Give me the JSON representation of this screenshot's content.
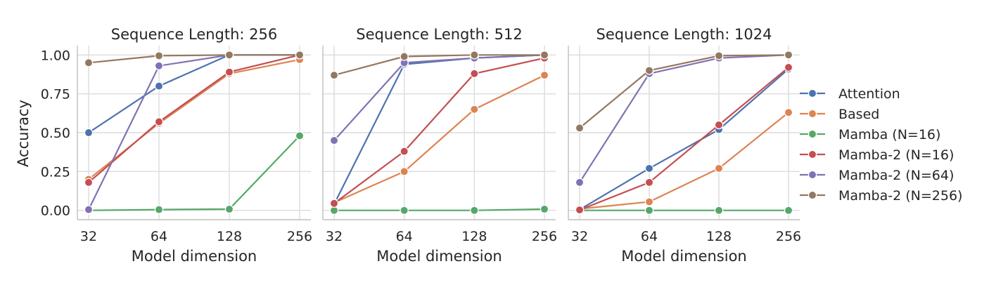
{
  "figure": {
    "ylabel": "Accuracy"
  },
  "chart_data": [
    {
      "type": "line",
      "title": "Sequence Length: 256",
      "xlabel": "Model dimension",
      "ylabel": "Accuracy",
      "x": [
        32,
        64,
        128,
        256
      ],
      "x_scale": "log2",
      "xticks": [
        "32",
        "64",
        "128",
        "256"
      ],
      "ylim": [
        -0.06,
        1.06
      ],
      "yticks": [
        "0.00",
        "0.25",
        "0.50",
        "0.75",
        "1.00"
      ],
      "grid": true,
      "series": [
        {
          "name": "Attention",
          "values": [
            0.5,
            0.8,
            1.0,
            1.0
          ]
        },
        {
          "name": "Based",
          "values": [
            0.2,
            0.56,
            0.88,
            0.97
          ]
        },
        {
          "name": "Mamba (N=16)",
          "values": [
            0.0,
            0.005,
            0.008,
            0.48
          ]
        },
        {
          "name": "Mamba-2 (N=16)",
          "values": [
            0.18,
            0.57,
            0.89,
            1.0
          ]
        },
        {
          "name": "Mamba-2 (N=64)",
          "values": [
            0.005,
            0.93,
            1.0,
            1.0
          ]
        },
        {
          "name": "Mamba-2 (N=256)",
          "values": [
            0.95,
            0.995,
            1.0,
            1.0
          ]
        }
      ]
    },
    {
      "type": "line",
      "title": "Sequence Length: 512",
      "xlabel": "Model dimension",
      "x": [
        32,
        64,
        128,
        256
      ],
      "x_scale": "log2",
      "xticks": [
        "32",
        "64",
        "128",
        "256"
      ],
      "ylim": [
        -0.06,
        1.06
      ],
      "grid": true,
      "series": [
        {
          "name": "Attention",
          "values": [
            0.04,
            0.94,
            0.98,
            1.0
          ]
        },
        {
          "name": "Based",
          "values": [
            0.05,
            0.25,
            0.65,
            0.87
          ]
        },
        {
          "name": "Mamba (N=16)",
          "values": [
            0.0,
            0.0,
            0.0,
            0.008
          ]
        },
        {
          "name": "Mamba-2 (N=16)",
          "values": [
            0.045,
            0.38,
            0.88,
            0.98
          ]
        },
        {
          "name": "Mamba-2 (N=64)",
          "values": [
            0.45,
            0.95,
            0.98,
            1.0
          ]
        },
        {
          "name": "Mamba-2 (N=256)",
          "values": [
            0.87,
            0.99,
            1.0,
            1.0
          ]
        }
      ]
    },
    {
      "type": "line",
      "title": "Sequence Length: 1024",
      "xlabel": "Model dimension",
      "x": [
        32,
        64,
        128,
        256
      ],
      "x_scale": "log2",
      "xticks": [
        "32",
        "64",
        "128",
        "256"
      ],
      "ylim": [
        -0.06,
        1.06
      ],
      "grid": true,
      "series": [
        {
          "name": "Attention",
          "values": [
            0.005,
            0.27,
            0.52,
            0.91
          ]
        },
        {
          "name": "Based",
          "values": [
            0.01,
            0.055,
            0.27,
            0.63
          ]
        },
        {
          "name": "Mamba (N=16)",
          "values": [
            0.0,
            0.0,
            0.0,
            0.0
          ]
        },
        {
          "name": "Mamba-2 (N=16)",
          "values": [
            0.003,
            0.18,
            0.55,
            0.92
          ]
        },
        {
          "name": "Mamba-2 (N=64)",
          "values": [
            0.18,
            0.88,
            0.98,
            1.0
          ]
        },
        {
          "name": "Mamba-2 (N=256)",
          "values": [
            0.53,
            0.9,
            0.995,
            1.0
          ]
        }
      ]
    }
  ],
  "legend": {
    "placement": "right",
    "entries": [
      {
        "name": "Attention",
        "color": "#4c72b0"
      },
      {
        "name": "Based",
        "color": "#dd8452"
      },
      {
        "name": "Mamba (N=16)",
        "color": "#55a868"
      },
      {
        "name": "Mamba-2 (N=16)",
        "color": "#c44e52"
      },
      {
        "name": "Mamba-2 (N=64)",
        "color": "#8172b3"
      },
      {
        "name": "Mamba-2 (N=256)",
        "color": "#937860"
      }
    ]
  }
}
